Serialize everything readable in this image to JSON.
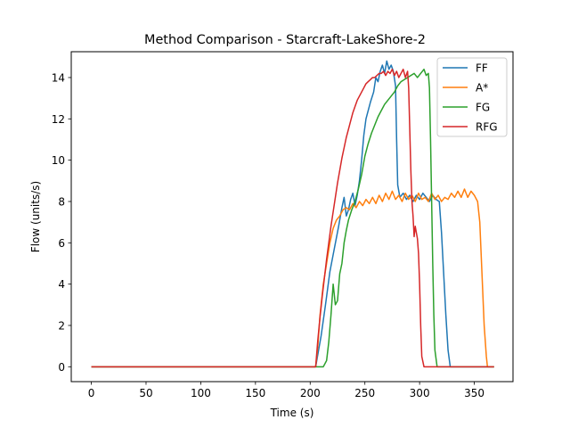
{
  "chart_data": {
    "type": "line",
    "title": "Method Comparison - Starcraft-LakeShore-2",
    "xlabel": "Time (s)",
    "ylabel": "Flow (units/s)",
    "xlim": [
      -18.35,
      385.35
    ],
    "ylim": [
      -0.72,
      15.25
    ],
    "xticks": [
      0,
      50,
      100,
      150,
      200,
      250,
      300,
      350
    ],
    "yticks": [
      0,
      2,
      4,
      6,
      8,
      10,
      12,
      14
    ],
    "grid": false,
    "legend_position": "upper right",
    "series": [
      {
        "name": "FF",
        "color": "#1f77b4",
        "points": [
          [
            0,
            0
          ],
          [
            205,
            0
          ],
          [
            210,
            1.5
          ],
          [
            214,
            3.0
          ],
          [
            218,
            4.6
          ],
          [
            222,
            5.7
          ],
          [
            226,
            6.8
          ],
          [
            229,
            7.7
          ],
          [
            231,
            8.2
          ],
          [
            233,
            7.3
          ],
          [
            235,
            7.6
          ],
          [
            237,
            8.1
          ],
          [
            239,
            8.4
          ],
          [
            241,
            7.8
          ],
          [
            243,
            8.3
          ],
          [
            245,
            9.0
          ],
          [
            247,
            10.0
          ],
          [
            249,
            11.2
          ],
          [
            251,
            12.0
          ],
          [
            253,
            12.4
          ],
          [
            255,
            12.8
          ],
          [
            258,
            13.3
          ],
          [
            260,
            14.0
          ],
          [
            262,
            13.8
          ],
          [
            264,
            14.3
          ],
          [
            266,
            14.6
          ],
          [
            268,
            14.2
          ],
          [
            270,
            14.8
          ],
          [
            272,
            14.4
          ],
          [
            274,
            14.6
          ],
          [
            276,
            14.3
          ],
          [
            278,
            13.6
          ],
          [
            279,
            11.0
          ],
          [
            280,
            8.8
          ],
          [
            282,
            8.2
          ],
          [
            285,
            8.4
          ],
          [
            288,
            8.1
          ],
          [
            291,
            8.3
          ],
          [
            294,
            8.0
          ],
          [
            297,
            8.3
          ],
          [
            300,
            8.1
          ],
          [
            303,
            8.4
          ],
          [
            306,
            8.2
          ],
          [
            309,
            8.0
          ],
          [
            312,
            8.3
          ],
          [
            315,
            8.1
          ],
          [
            318,
            8.0
          ],
          [
            320,
            6.5
          ],
          [
            322,
            4.5
          ],
          [
            324,
            2.5
          ],
          [
            326,
            0.8
          ],
          [
            328,
            0
          ],
          [
            368,
            0
          ]
        ]
      },
      {
        "name": "A*",
        "color": "#ff7f0e",
        "points": [
          [
            0,
            0
          ],
          [
            205,
            0
          ],
          [
            207,
            1.0
          ],
          [
            209,
            2.5
          ],
          [
            212,
            4.0
          ],
          [
            215,
            5.0
          ],
          [
            218,
            6.0
          ],
          [
            221,
            6.7
          ],
          [
            224,
            7.1
          ],
          [
            227,
            7.3
          ],
          [
            230,
            7.6
          ],
          [
            233,
            7.7
          ],
          [
            236,
            7.6
          ],
          [
            239,
            7.9
          ],
          [
            242,
            7.7
          ],
          [
            245,
            8.0
          ],
          [
            248,
            7.8
          ],
          [
            251,
            8.1
          ],
          [
            254,
            7.9
          ],
          [
            257,
            8.2
          ],
          [
            260,
            7.9
          ],
          [
            263,
            8.3
          ],
          [
            266,
            8.0
          ],
          [
            269,
            8.4
          ],
          [
            272,
            8.1
          ],
          [
            275,
            8.5
          ],
          [
            278,
            8.1
          ],
          [
            281,
            8.3
          ],
          [
            284,
            8.0
          ],
          [
            287,
            8.4
          ],
          [
            290,
            8.1
          ],
          [
            293,
            8.3
          ],
          [
            296,
            8.0
          ],
          [
            299,
            8.4
          ],
          [
            302,
            8.1
          ],
          [
            305,
            8.2
          ],
          [
            308,
            8.0
          ],
          [
            311,
            8.4
          ],
          [
            314,
            8.1
          ],
          [
            317,
            8.3
          ],
          [
            320,
            8.0
          ],
          [
            323,
            8.2
          ],
          [
            326,
            8.1
          ],
          [
            329,
            8.4
          ],
          [
            332,
            8.2
          ],
          [
            335,
            8.5
          ],
          [
            338,
            8.2
          ],
          [
            341,
            8.6
          ],
          [
            344,
            8.2
          ],
          [
            347,
            8.5
          ],
          [
            350,
            8.3
          ],
          [
            353,
            8.0
          ],
          [
            355,
            7.0
          ],
          [
            357,
            4.5
          ],
          [
            359,
            2.0
          ],
          [
            361,
            0.5
          ],
          [
            362,
            0
          ],
          [
            368,
            0
          ]
        ]
      },
      {
        "name": "FG",
        "color": "#2ca02c",
        "points": [
          [
            0,
            0
          ],
          [
            212,
            0
          ],
          [
            215,
            0.3
          ],
          [
            217,
            1.2
          ],
          [
            219,
            2.5
          ],
          [
            221,
            4.0
          ],
          [
            223,
            3.0
          ],
          [
            225,
            3.2
          ],
          [
            227,
            4.5
          ],
          [
            229,
            5.0
          ],
          [
            231,
            6.0
          ],
          [
            233,
            6.6
          ],
          [
            235,
            7.1
          ],
          [
            238,
            7.6
          ],
          [
            241,
            8.0
          ],
          [
            244,
            8.6
          ],
          [
            247,
            9.3
          ],
          [
            250,
            10.2
          ],
          [
            253,
            10.8
          ],
          [
            256,
            11.3
          ],
          [
            259,
            11.7
          ],
          [
            262,
            12.1
          ],
          [
            265,
            12.4
          ],
          [
            268,
            12.7
          ],
          [
            271,
            12.9
          ],
          [
            274,
            13.1
          ],
          [
            277,
            13.3
          ],
          [
            280,
            13.6
          ],
          [
            283,
            13.8
          ],
          [
            286,
            13.9
          ],
          [
            289,
            14.0
          ],
          [
            292,
            14.1
          ],
          [
            295,
            14.2
          ],
          [
            298,
            14.0
          ],
          [
            301,
            14.2
          ],
          [
            304,
            14.4
          ],
          [
            306,
            14.1
          ],
          [
            308,
            14.2
          ],
          [
            309,
            13.5
          ],
          [
            310,
            11.0
          ],
          [
            311,
            8.0
          ],
          [
            312,
            5.0
          ],
          [
            313,
            2.5
          ],
          [
            314,
            0.8
          ],
          [
            316,
            0
          ],
          [
            368,
            0
          ]
        ]
      },
      {
        "name": "RFG",
        "color": "#d62728",
        "points": [
          [
            0,
            0
          ],
          [
            205,
            0
          ],
          [
            207,
            1.3
          ],
          [
            209,
            2.4
          ],
          [
            211,
            3.4
          ],
          [
            213,
            4.3
          ],
          [
            215,
            5.2
          ],
          [
            217,
            6.0
          ],
          [
            219,
            6.8
          ],
          [
            221,
            7.5
          ],
          [
            223,
            8.2
          ],
          [
            225,
            8.9
          ],
          [
            227,
            9.5
          ],
          [
            229,
            10.1
          ],
          [
            231,
            10.6
          ],
          [
            233,
            11.1
          ],
          [
            235,
            11.5
          ],
          [
            237,
            11.9
          ],
          [
            239,
            12.3
          ],
          [
            241,
            12.6
          ],
          [
            243,
            12.9
          ],
          [
            245,
            13.1
          ],
          [
            247,
            13.3
          ],
          [
            249,
            13.5
          ],
          [
            251,
            13.7
          ],
          [
            253,
            13.8
          ],
          [
            255,
            13.9
          ],
          [
            257,
            14.0
          ],
          [
            259,
            14.0
          ],
          [
            261,
            14.1
          ],
          [
            263,
            14.2
          ],
          [
            265,
            14.2
          ],
          [
            267,
            14.3
          ],
          [
            269,
            14.1
          ],
          [
            271,
            14.3
          ],
          [
            273,
            14.2
          ],
          [
            275,
            14.4
          ],
          [
            277,
            14.1
          ],
          [
            279,
            14.3
          ],
          [
            281,
            14.0
          ],
          [
            283,
            14.2
          ],
          [
            285,
            14.4
          ],
          [
            287,
            14.0
          ],
          [
            289,
            14.3
          ],
          [
            290,
            13.5
          ],
          [
            291,
            11.5
          ],
          [
            292,
            9.5
          ],
          [
            293,
            8.0
          ],
          [
            294,
            7.3
          ],
          [
            295,
            6.3
          ],
          [
            296,
            6.8
          ],
          [
            297,
            6.5
          ],
          [
            298,
            6.2
          ],
          [
            299,
            5.5
          ],
          [
            300,
            4.0
          ],
          [
            301,
            2.0
          ],
          [
            302,
            0.5
          ],
          [
            304,
            0
          ],
          [
            368,
            0
          ]
        ]
      }
    ]
  }
}
